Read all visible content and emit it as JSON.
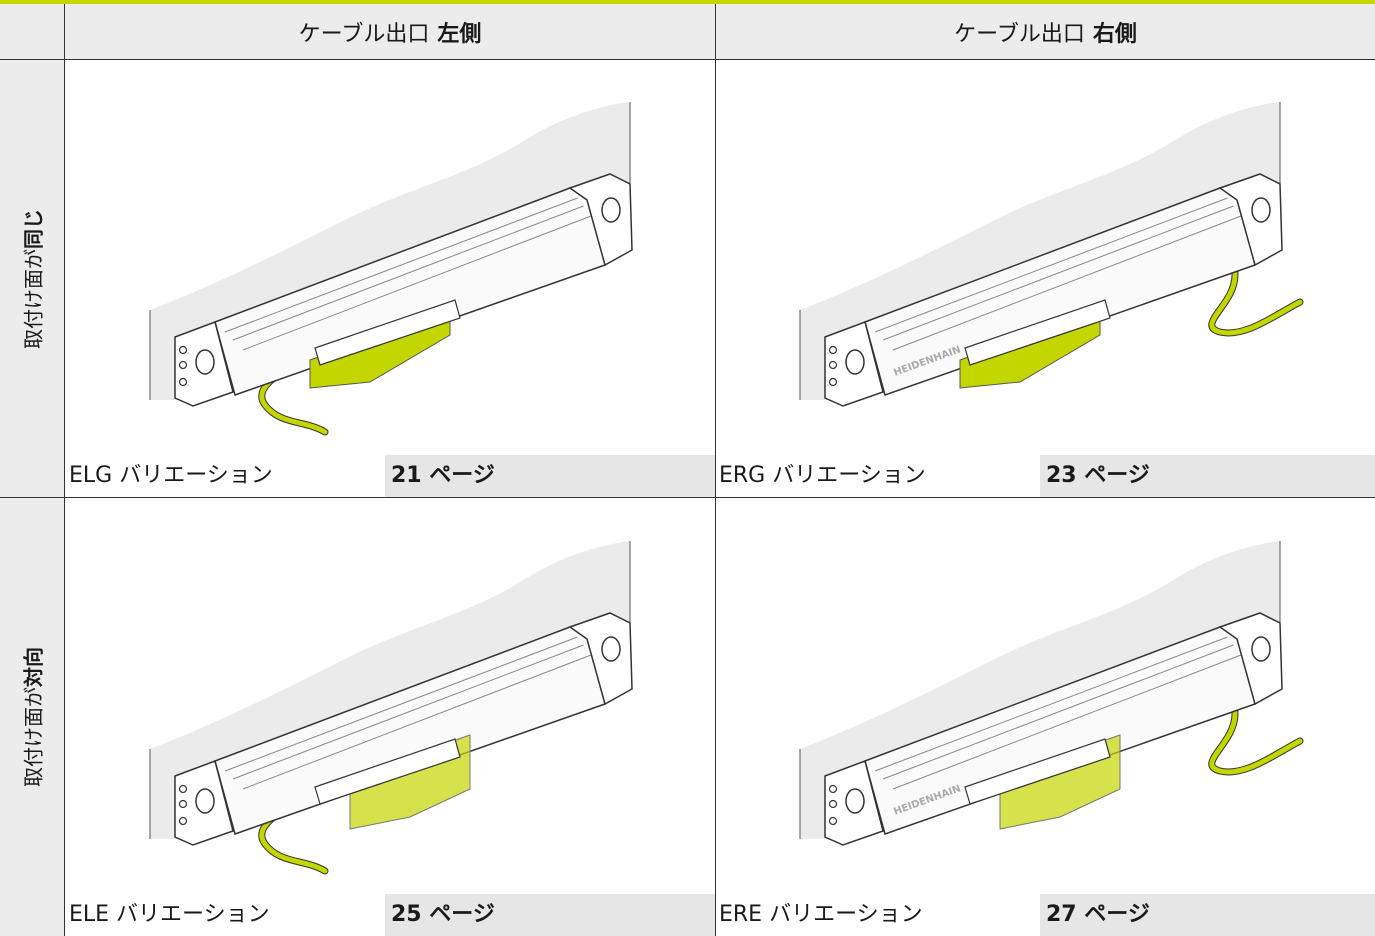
{
  "header": {
    "columns": [
      {
        "text": "ケーブル出口",
        "emphasis": "左側"
      },
      {
        "text": "ケーブル出口",
        "emphasis": "右側"
      }
    ]
  },
  "rows": [
    {
      "label": {
        "text": "取付け面が",
        "emphasis": "同じ"
      },
      "cells": [
        {
          "variant": "ELG バリエーション",
          "page": "21 ページ"
        },
        {
          "variant": "ERG バリエーション",
          "page": "23 ページ",
          "brand": "HEIDENHAIN"
        }
      ]
    },
    {
      "label": {
        "text": "取付け面が",
        "emphasis": "対向"
      },
      "cells": [
        {
          "variant": "ELE バリエーション",
          "page": "25 ページ"
        },
        {
          "variant": "ERE バリエーション",
          "page": "27 ページ",
          "brand": "HEIDENHAIN"
        }
      ]
    }
  ]
}
